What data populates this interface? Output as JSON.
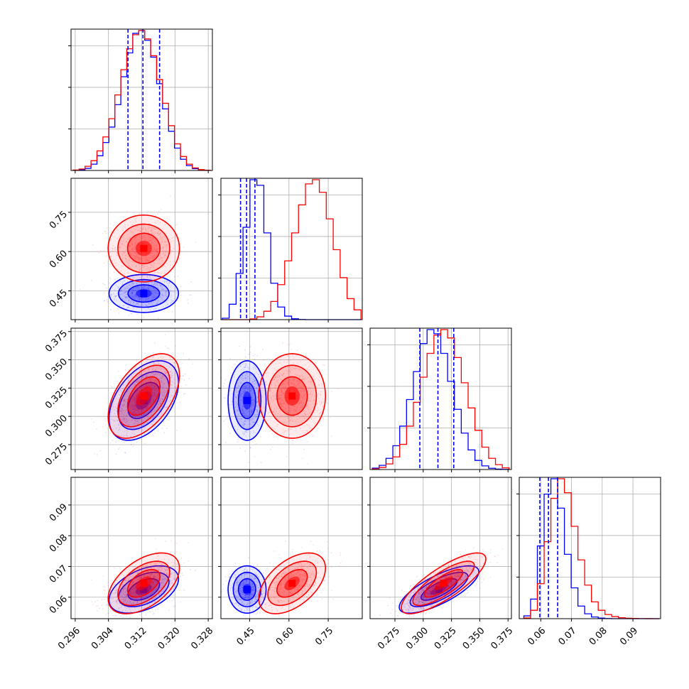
{
  "colors": {
    "series_a": "#0000ff",
    "series_b": "#ff0000",
    "grid": "#b0b0b0",
    "axes": "#000000"
  },
  "chart_data": {
    "type": "corner",
    "grid": true,
    "parameters": [
      {
        "ticks": [
          "0.296",
          "0.304",
          "0.312",
          "0.320",
          "0.328"
        ],
        "tick_values": [
          0.296,
          0.304,
          0.312,
          0.32,
          0.328
        ],
        "range": [
          0.295,
          0.329
        ]
      },
      {
        "ticks": [
          "0.45",
          "0.60",
          "0.75"
        ],
        "tick_values": [
          0.45,
          0.6,
          0.75
        ],
        "range": [
          0.34,
          0.88
        ]
      },
      {
        "ticks": [
          "0.275",
          "0.300",
          "0.325",
          "0.350",
          "0.375"
        ],
        "tick_values": [
          0.275,
          0.3,
          0.325,
          0.35,
          0.375
        ],
        "range": [
          0.253,
          0.378
        ]
      },
      {
        "ticks": [
          "0.06",
          "0.07",
          "0.08",
          "0.09"
        ],
        "tick_values": [
          0.06,
          0.07,
          0.08,
          0.09
        ],
        "range": [
          0.053,
          0.099
        ]
      }
    ],
    "series": [
      {
        "color": "#0000ff",
        "mean": [
          0.3125,
          0.44,
          0.314,
          0.0625
        ],
        "std": [
          0.0038,
          0.033,
          0.016,
          0.0035
        ],
        "quantiles": [
          [
            0.3087,
            0.3123,
            0.3163
          ],
          [
            0.415,
            0.438,
            0.47
          ],
          [
            0.297,
            0.313,
            0.327
          ],
          [
            0.0597,
            0.0625,
            0.0655
          ]
        ],
        "show_quantiles": true
      },
      {
        "color": "#ff0000",
        "mean": [
          0.3125,
          0.612,
          0.318,
          0.0645
        ],
        "std": [
          0.0039,
          0.058,
          0.017,
          0.0045
        ]
      }
    ],
    "correlations_blue": [
      [
        1,
        0.0,
        0.45,
        0.45
      ],
      [
        0.0,
        1,
        0.0,
        0.0
      ],
      [
        0.45,
        0.0,
        1,
        0.75
      ],
      [
        0.45,
        0.0,
        0.75,
        1
      ]
    ],
    "correlations_red": [
      [
        1,
        0.0,
        0.5,
        0.5
      ],
      [
        0.0,
        1,
        0.0,
        0.5
      ],
      [
        0.5,
        0.0,
        1,
        0.8
      ],
      [
        0.5,
        0.5,
        0.8,
        1
      ]
    ],
    "histograms": {
      "blue": [
        [
          0.1,
          0.4,
          1.5,
          4.5,
          10.5,
          20.0,
          31.0,
          47.0,
          67.0,
          84.0,
          98.0,
          100.0,
          93.0,
          81.0,
          62.0,
          44.0,
          28.0,
          16.0,
          8.0,
          3.5,
          1.3,
          0.4,
          0.1
        ],
        [
          1.0,
          11.0,
          33.0,
          66.0,
          100.0,
          96.0,
          62.0,
          26.0,
          9.0,
          2.5,
          0.6,
          0.1,
          0,
          0,
          0,
          0,
          0,
          0,
          0,
          0
        ],
        [
          1.0,
          3.0,
          8.0,
          17.0,
          31.0,
          50.0,
          70.0,
          90.0,
          100.0,
          97.0,
          83.0,
          63.0,
          43.0,
          26.0,
          14.0,
          6.5,
          2.6,
          0.9,
          0.3,
          0.1
        ],
        [
          2.0,
          14.0,
          52.0,
          89.0,
          100.0,
          79.0,
          46.0,
          22.0,
          9.0,
          3.5,
          1.2,
          0.4,
          0.1,
          0,
          0,
          0,
          0,
          0,
          0,
          0
        ]
      ],
      "red": [
        [
          0.3,
          1.0,
          3.0,
          7.0,
          14.0,
          24.0,
          37.0,
          54.0,
          72.0,
          87.0,
          97.0,
          100.0,
          94.0,
          82.0,
          65.0,
          48.0,
          32.0,
          19.0,
          10.0,
          4.5,
          1.8,
          0.6,
          0.2
        ],
        [
          0,
          0,
          0,
          0,
          0.5,
          2.0,
          6.0,
          13.0,
          25.0,
          42.0,
          62.0,
          82.0,
          97.0,
          100.0,
          91.0,
          72.0,
          50.0,
          30.0,
          15.0,
          7.0
        ],
        [
          0.4,
          1.5,
          4.0,
          9.0,
          18.0,
          31.0,
          48.0,
          66.0,
          83.0,
          96.0,
          100.0,
          94.0,
          80.0,
          62.0,
          44.0,
          28.0,
          16.0,
          8.0,
          3.5,
          1.2
        ],
        [
          0.5,
          6.0,
          25.0,
          55.0,
          86.0,
          100.0,
          90.0,
          66.0,
          42.0,
          24.0,
          12.0,
          6.0,
          3.0,
          1.5,
          0.7,
          0.3,
          0.15,
          0.05,
          0.02,
          0.01
        ]
      ]
    }
  }
}
